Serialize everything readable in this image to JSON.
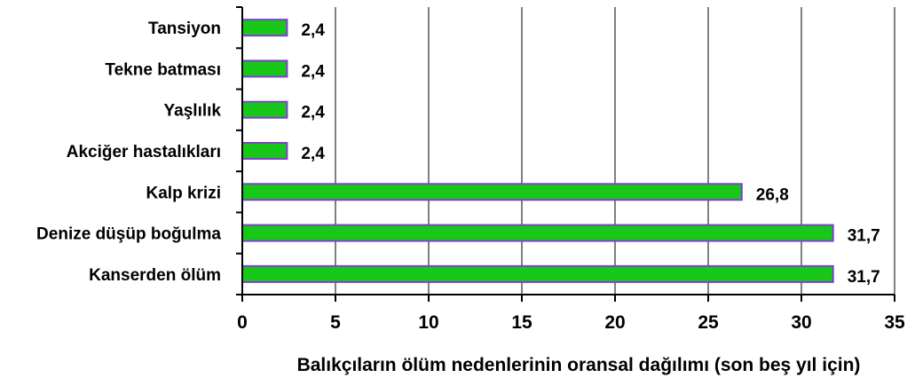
{
  "chart_data": {
    "type": "bar",
    "orientation": "horizontal",
    "categories": [
      "Tansiyon",
      "Tekne batması",
      "Yaşlılık",
      "Akciğer hastalıkları",
      "Kalp krizi",
      "Denize düşüp boğulma",
      "Kanserden ölüm"
    ],
    "values": [
      2.4,
      2.4,
      2.4,
      2.4,
      26.8,
      31.7,
      31.7
    ],
    "value_labels": [
      "2,4",
      "2,4",
      "2,4",
      "2,4",
      "26,8",
      "31,7",
      "31,7"
    ],
    "title": "",
    "xlabel": "Balıkçıların ölüm nedenlerinin oransal dağılımı (son beş yıl için)",
    "ylabel": "",
    "xlim": [
      0,
      35
    ],
    "xticks": [
      0,
      5,
      10,
      15,
      20,
      25,
      30,
      35
    ],
    "grid": "vertical",
    "legend": "none",
    "colors": {
      "bar_fill": "#19c719",
      "bar_edge": "#7f3fd0",
      "grid": "#808080",
      "axis": "#000000"
    }
  }
}
